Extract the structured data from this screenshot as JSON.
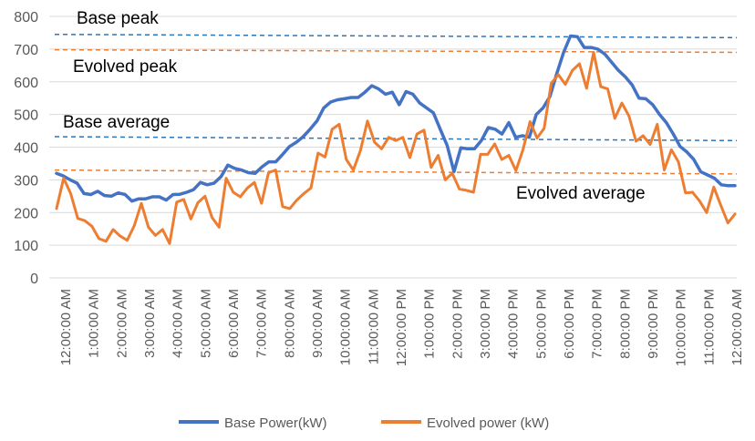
{
  "chart_data": {
    "type": "line",
    "title": "",
    "xlabel": "",
    "ylabel": "",
    "ylim": [
      0,
      800
    ],
    "yticks": [
      0,
      100,
      200,
      300,
      400,
      500,
      600,
      700,
      800
    ],
    "grid": true,
    "legend_position": "bottom",
    "x_tick_labels": [
      "12:00:00 AM",
      "1:00:00 AM",
      "2:00:00 AM",
      "3:00:00 AM",
      "4:00:00 AM",
      "5:00:00 AM",
      "6:00:00 AM",
      "7:00:00 AM",
      "8:00:00 AM",
      "9:00:00 AM",
      "10:00:00 AM",
      "11:00:00 AM",
      "12:00:00 PM",
      "1:00:00 PM",
      "2:00:00 PM",
      "3:00:00 PM",
      "4:00:00 PM",
      "5:00:00 PM",
      "6:00:00 PM",
      "7:00:00 PM",
      "8:00:00 PM",
      "9:00:00 PM",
      "10:00:00 PM",
      "11:00:00 PM",
      "12:00:00 AM"
    ],
    "series": [
      {
        "name": "Base Power(kW)",
        "color": "#4472C4",
        "values": [
          320,
          312,
          300,
          290,
          258,
          255,
          265,
          252,
          250,
          260,
          255,
          235,
          242,
          242,
          248,
          248,
          238,
          255,
          256,
          262,
          270,
          292,
          285,
          290,
          310,
          345,
          335,
          330,
          322,
          320,
          340,
          355,
          355,
          378,
          402,
          415,
          432,
          455,
          480,
          520,
          538,
          545,
          548,
          552,
          552,
          568,
          588,
          578,
          562,
          568,
          530,
          570,
          562,
          535,
          520,
          505,
          455,
          405,
          325,
          398,
          395,
          395,
          420,
          460,
          455,
          440,
          475,
          430,
          435,
          430,
          500,
          520,
          555,
          625,
          690,
          740,
          738,
          705,
          705,
          700,
          685,
          660,
          635,
          615,
          590,
          550,
          548,
          530,
          500,
          475,
          440,
          402,
          385,
          362,
          325,
          315,
          305,
          285,
          282,
          282
        ]
      },
      {
        "name": "Evolved power (kW)",
        "color": "#ED7D31",
        "values": [
          212,
          305,
          258,
          182,
          175,
          158,
          120,
          112,
          148,
          128,
          115,
          160,
          228,
          155,
          130,
          148,
          105,
          232,
          240,
          180,
          230,
          250,
          185,
          155,
          305,
          262,
          248,
          275,
          292,
          228,
          322,
          330,
          218,
          212,
          238,
          258,
          275,
          382,
          370,
          455,
          470,
          362,
          330,
          390,
          480,
          415,
          395,
          430,
          420,
          430,
          368,
          440,
          452,
          338,
          375,
          300,
          320,
          272,
          268,
          262,
          378,
          378,
          410,
          362,
          375,
          328,
          392,
          478,
          428,
          458,
          595,
          622,
          592,
          635,
          655,
          580,
          690,
          585,
          578,
          488,
          535,
          495,
          418,
          435,
          408,
          470,
          330,
          392,
          355,
          260,
          262,
          235,
          200,
          278,
          222,
          168,
          195
        ]
      }
    ],
    "annotations": [
      {
        "label": "Base peak",
        "value": 745,
        "end_value": 735,
        "color": "#2E75B6"
      },
      {
        "label": "Evolved peak",
        "value": 698,
        "end_value": 690,
        "color": "#ED7D31"
      },
      {
        "label": "Base average",
        "value": 432,
        "end_value": 420,
        "color": "#2E75B6"
      },
      {
        "label": "Evolved average",
        "value": 330,
        "end_value": 318,
        "color": "#ED7D31"
      }
    ]
  }
}
